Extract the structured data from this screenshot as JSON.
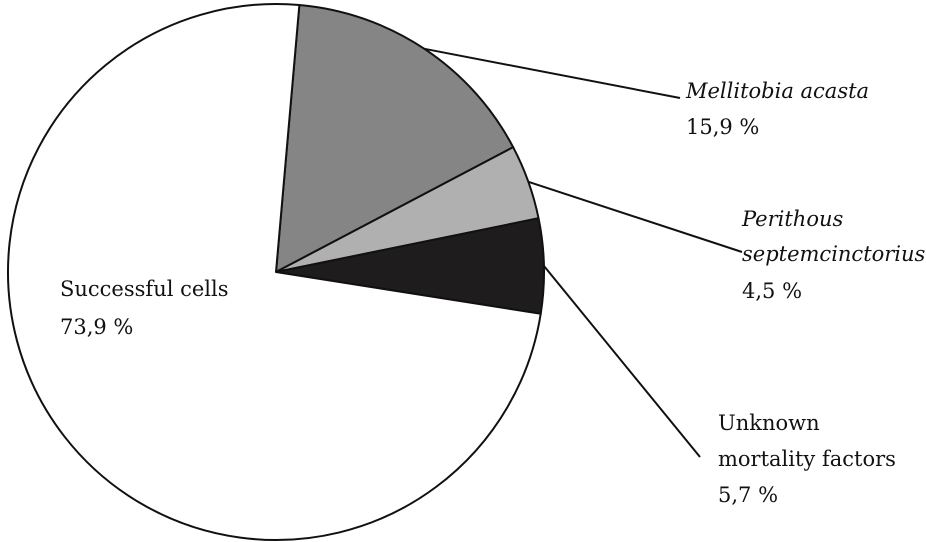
{
  "chart_data": {
    "type": "pie",
    "title": "",
    "start_angle_deg": 5,
    "slices": [
      {
        "label_lines": [
          "Mellitobia acasta"
        ],
        "value_text": "15,9 %",
        "value": 15.9,
        "color": "#858585",
        "italic": true
      },
      {
        "label_lines": [
          "Perithous",
          "septemcinctorius"
        ],
        "value_text": "4,5 %",
        "value": 4.5,
        "color": "#b0b0b0",
        "italic": true
      },
      {
        "label_lines": [
          "Unknown",
          "mortality factors"
        ],
        "value_text": "5,7 %",
        "value": 5.7,
        "color": "#1e1c1c",
        "italic": false
      },
      {
        "label_lines": [
          "Successful cells"
        ],
        "value_text": "73,9 %",
        "value": 73.9,
        "color": "#ffffff",
        "italic": false
      }
    ]
  }
}
